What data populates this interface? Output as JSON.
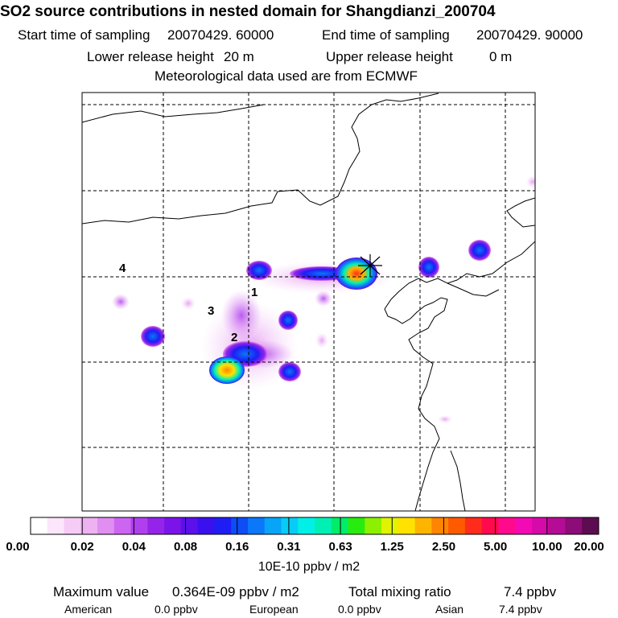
{
  "header": {
    "title": "SO2 source contributions in nested domain for Shangdianzi_200704",
    "start_label": "Start time of sampling",
    "start_value": "20070429. 60000",
    "end_label": "End time of sampling",
    "end_value": "20070429. 90000",
    "lower_label": "Lower release height",
    "lower_value": "20 m",
    "upper_label": "Upper release height",
    "upper_value": "0 m",
    "meteo": "Meteorological data used are from ECMWF"
  },
  "map": {
    "region_labels": [
      "1",
      "2",
      "3",
      "4"
    ],
    "receptor_marker": "Shangdianzi"
  },
  "chart_data": {
    "type": "heatmap",
    "title": "SO2 source contributions in nested domain for Shangdianzi_200704",
    "colorbar": {
      "tick_labels": [
        "0.00",
        "0.02",
        "0.04",
        "0.08",
        "0.16",
        "0.31",
        "0.63",
        "1.25",
        "2.50",
        "5.00",
        "10.00",
        "20.00"
      ],
      "unit": "10E-10 ppbv / m2",
      "colors": [
        "#ffffff",
        "#fbe6fb",
        "#f6ccf6",
        "#eeb2f0",
        "#e08ef0",
        "#cc66f2",
        "#b040ee",
        "#9424ea",
        "#7a14e8",
        "#5c10ea",
        "#3a10ee",
        "#1e1ef4",
        "#0e4cf6",
        "#0a78f8",
        "#08a4f8",
        "#06ccf6",
        "#00f0e8",
        "#00f0b4",
        "#00ec6a",
        "#28ec10",
        "#8cf000",
        "#e0f400",
        "#ffe200",
        "#ffb400",
        "#ff8400",
        "#ff5a00",
        "#ff2c1c",
        "#ff0a4c",
        "#ff0a8c",
        "#f40ab4",
        "#d60aa8",
        "#b40c94",
        "#8c0c78",
        "#5c0c50"
      ]
    },
    "max_value_label": "Maximum value",
    "max_value": "0.364E-09 ppbv / m2",
    "total_label": "Total mixing ratio",
    "total_value": "7.4 ppbv",
    "contributions": [
      {
        "name": "American",
        "value": "0.0 ppbv"
      },
      {
        "name": "European",
        "value": "0.0 ppbv"
      },
      {
        "name": "Asian",
        "value": "7.4 ppbv"
      }
    ]
  }
}
